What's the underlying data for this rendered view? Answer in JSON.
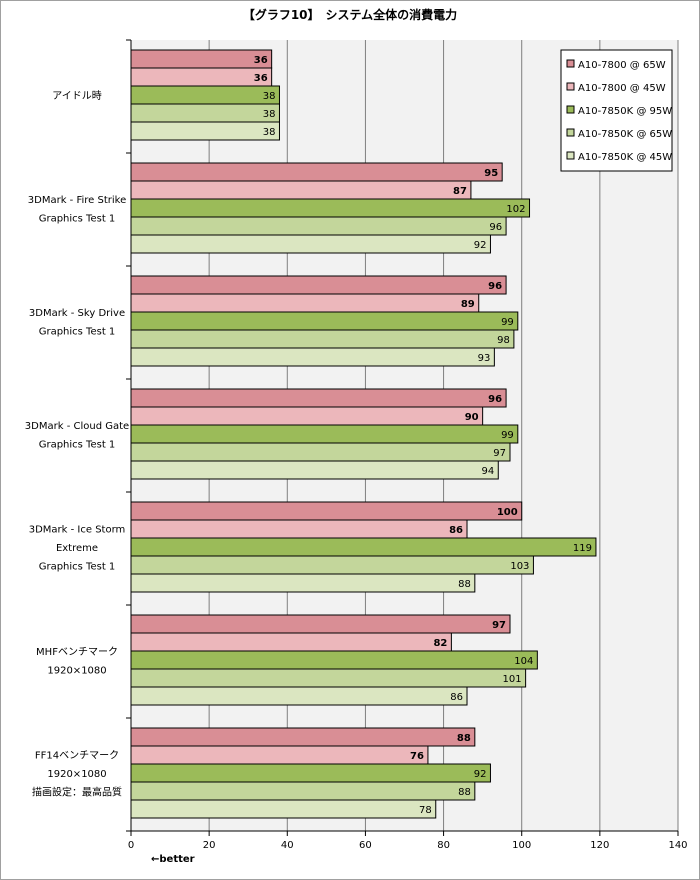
{
  "chart_data": {
    "type": "bar",
    "orientation": "horizontal",
    "title": "【グラフ10】　システム全体の消費電力",
    "xlim": [
      0,
      140
    ],
    "xticks": [
      0,
      20,
      40,
      60,
      80,
      100,
      120,
      140
    ],
    "grid": true,
    "legend_position": "top-right",
    "note": "←better",
    "categories": [
      [
        "アイドル時"
      ],
      [
        "3DMark - Fire Strike",
        "Graphics Test 1"
      ],
      [
        "3DMark - Sky Drive",
        "Graphics Test 1"
      ],
      [
        "3DMark - Cloud Gate",
        "Graphics Test 1"
      ],
      [
        "3DMark - Ice Storm",
        "Extreme",
        "Graphics Test 1"
      ],
      [
        "MHFベンチマーク",
        "1920×1080"
      ],
      [
        "FF14ベンチマーク",
        "1920×1080",
        "描画設定：最高品質"
      ]
    ],
    "series": [
      {
        "name": "A10-7800 @ 65W",
        "color": "#d98e95",
        "label_bold": true,
        "values": [
          36,
          95,
          96,
          96,
          100,
          97,
          88
        ]
      },
      {
        "name": "A10-7800 @ 45W",
        "color": "#ecb7bb",
        "label_bold": true,
        "values": [
          36,
          87,
          89,
          90,
          86,
          82,
          76
        ]
      },
      {
        "name": "A10-7850K @ 95W",
        "color": "#9bbb59",
        "label_bold": false,
        "values": [
          38,
          102,
          99,
          99,
          119,
          104,
          92
        ]
      },
      {
        "name": "A10-7850K @ 65W",
        "color": "#c3d69b",
        "label_bold": false,
        "values": [
          38,
          96,
          98,
          97,
          103,
          101,
          88
        ]
      },
      {
        "name": "A10-7850K @ 45W",
        "color": "#dbe6c1",
        "label_bold": false,
        "values": [
          38,
          92,
          93,
          94,
          88,
          86,
          78
        ]
      }
    ]
  }
}
